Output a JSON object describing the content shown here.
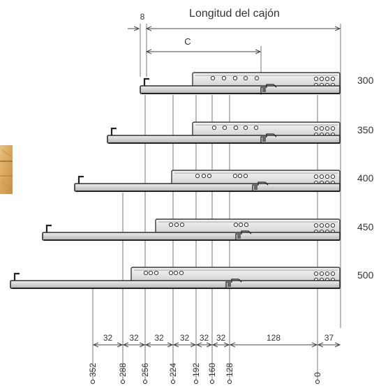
{
  "header": {
    "length_title": "Longitud del cajón",
    "dim_8": "8",
    "dim_c": "C"
  },
  "rows": [
    {
      "size": "300"
    },
    {
      "size": "350"
    },
    {
      "size": "400"
    },
    {
      "size": "450"
    },
    {
      "size": "500"
    }
  ],
  "bottom_spacings": [
    "32",
    "32",
    "32",
    "32",
    "32",
    "32",
    "128",
    "37"
  ],
  "bottom_positions": [
    "352",
    "288",
    "256",
    "224",
    "192",
    "160",
    "128",
    "0"
  ],
  "colors": {
    "line": "#555555",
    "metal_light": "#e6e6e6",
    "metal_mid": "#bdbdbd",
    "metal_dark": "#3a3a3a",
    "wood_light": "#e2b777",
    "wood_dark": "#b77f35"
  }
}
